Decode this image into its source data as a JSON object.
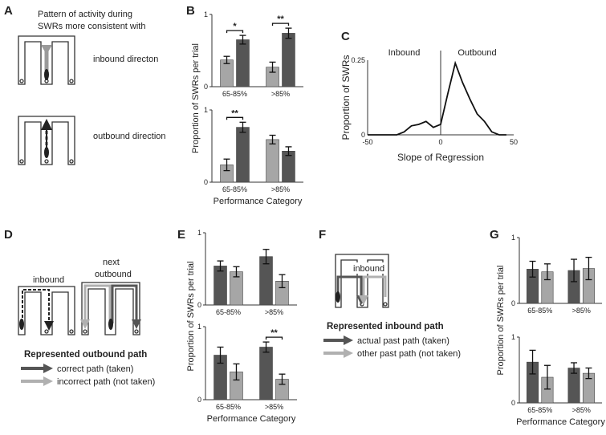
{
  "panels": {
    "A": {
      "label": "A",
      "lines": [
        "Pattern of activity during",
        "SWRs more consistent with"
      ],
      "inbound": "inbound directon",
      "outbound": "outbound direction"
    },
    "D": {
      "label": "D",
      "inbound": "inbound",
      "next": [
        "next",
        "outbound"
      ],
      "legend_title": "Represented outbound path",
      "legend": [
        "correct path (taken)",
        "incorrect path (not taken)"
      ]
    },
    "F": {
      "label": "F",
      "inbound": "inbound",
      "legend_title": "Represented inbound path",
      "legend": [
        "actual past path (taken)",
        "other past path (not taken)"
      ]
    }
  },
  "colors": {
    "dark": "#555555",
    "light": "#a6a6a6"
  },
  "chart_data": [
    {
      "panel": "B",
      "type": "bar",
      "ylabel": "Proportion of SWRs per trial",
      "xlabel": "",
      "categories": [
        "65-85%",
        ">85%"
      ],
      "ylim": [
        0,
        1
      ],
      "series": [
        {
          "values": [
            0.37,
            0.27
          ],
          "err": [
            0.05,
            0.07
          ]
        },
        {
          "values": [
            0.65,
            0.74
          ],
          "err": [
            0.06,
            0.07
          ]
        }
      ],
      "sig": [
        {
          "group": 0,
          "label": "*"
        },
        {
          "group": 1,
          "label": "**"
        }
      ]
    },
    {
      "panel": "B",
      "type": "bar",
      "ylabel": "",
      "xlabel": "Performance Category",
      "categories": [
        "65-85%",
        ">85%"
      ],
      "ylim": [
        0,
        1
      ],
      "series": [
        {
          "values": [
            0.24,
            0.59
          ],
          "err": [
            0.08,
            0.06
          ]
        },
        {
          "values": [
            0.76,
            0.43
          ],
          "err": [
            0.07,
            0.06
          ]
        }
      ],
      "sig": [
        {
          "group": 0,
          "label": "**"
        }
      ]
    },
    {
      "panel": "C",
      "type": "line",
      "xlabel": "Slope of Regression",
      "ylabel": "Proportion of SWRs",
      "xlim": [
        -50,
        50
      ],
      "ylim": [
        0,
        0.25
      ],
      "annotations": [
        "Inbound",
        "Outbound"
      ],
      "x": [
        -50,
        -40,
        -30,
        -25,
        -20,
        -15,
        -10,
        -5,
        0,
        5,
        10,
        15,
        20,
        25,
        30,
        35,
        40,
        45
      ],
      "y": [
        0,
        0,
        0,
        0.01,
        0.03,
        0.035,
        0.045,
        0.025,
        0.035,
        0.14,
        0.24,
        0.175,
        0.12,
        0.07,
        0.045,
        0.01,
        0,
        0
      ]
    },
    {
      "panel": "E",
      "type": "bar",
      "ylabel": "Proportion of SWRs per trial",
      "xlabel": "",
      "categories": [
        "65-85%",
        ">85%"
      ],
      "ylim": [
        0,
        1
      ],
      "series": [
        {
          "values": [
            0.54,
            0.67
          ],
          "err": [
            0.07,
            0.1
          ]
        },
        {
          "values": [
            0.46,
            0.33
          ],
          "err": [
            0.07,
            0.09
          ]
        }
      ],
      "sig": []
    },
    {
      "panel": "E",
      "type": "bar",
      "ylabel": "",
      "xlabel": "Performance Category",
      "categories": [
        "65-85%",
        ">85%"
      ],
      "ylim": [
        0,
        1
      ],
      "series": [
        {
          "values": [
            0.61,
            0.72
          ],
          "err": [
            0.11,
            0.07
          ]
        },
        {
          "values": [
            0.38,
            0.28
          ],
          "err": [
            0.11,
            0.07
          ]
        }
      ],
      "sig": [
        {
          "group": 1,
          "label": "**"
        }
      ]
    },
    {
      "panel": "G",
      "type": "bar",
      "ylabel": "Proportion of SWRs per trial",
      "xlabel": "",
      "categories": [
        "65-85%",
        ">85%"
      ],
      "ylim": [
        0,
        1
      ],
      "series": [
        {
          "values": [
            0.52,
            0.5
          ],
          "err": [
            0.12,
            0.17
          ]
        },
        {
          "values": [
            0.48,
            0.53
          ],
          "err": [
            0.12,
            0.17
          ]
        }
      ],
      "sig": []
    },
    {
      "panel": "G",
      "type": "bar",
      "ylabel": "",
      "xlabel": "Performance Category",
      "categories": [
        "65-85%",
        ">85%"
      ],
      "ylim": [
        0,
        1
      ],
      "series": [
        {
          "values": [
            0.62,
            0.53
          ],
          "err": [
            0.18,
            0.08
          ]
        },
        {
          "values": [
            0.39,
            0.45
          ],
          "err": [
            0.18,
            0.08
          ]
        }
      ],
      "sig": []
    }
  ]
}
